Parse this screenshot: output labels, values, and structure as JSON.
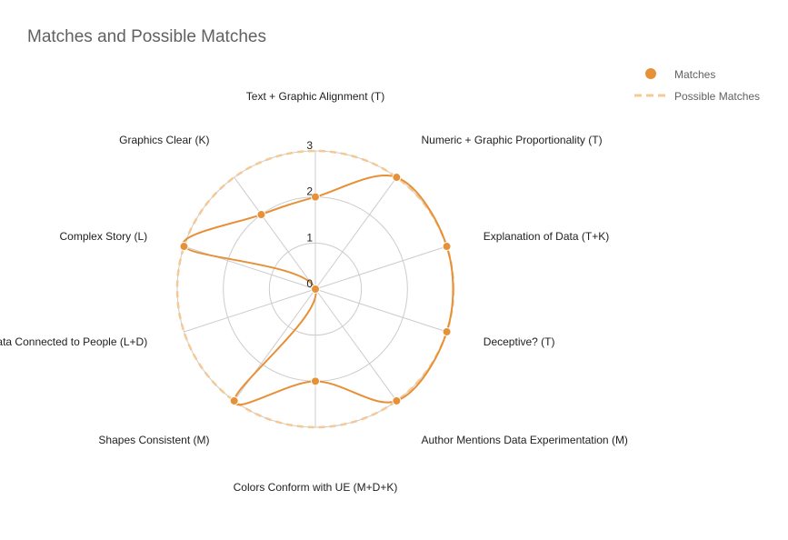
{
  "chart_data": {
    "type": "radar",
    "title": "Matches and Possible Matches",
    "axes": [
      "Text + Graphic Alignment (T)",
      "Numeric + Graphic Proportionality (T)",
      "Explanation of Data (T+K)",
      "Deceptive? (T)",
      "Author Mentions Data Experimentation (M)",
      "Colors Conform with UE (M+D+K)",
      "Shapes Consistent (M)",
      "Data Connected to People (L+D)",
      "Complex Story (L)",
      "Graphics Clear (K)"
    ],
    "rlim": [
      0,
      3
    ],
    "ticks": [
      "0",
      "1",
      "2",
      "3"
    ],
    "grid": true,
    "legend": "top-right",
    "series": [
      {
        "name": "Matches",
        "values": [
          2,
          3,
          3,
          3,
          3,
          2,
          3,
          0,
          3,
          2
        ],
        "color": "#e69138",
        "style": "line-with-points"
      },
      {
        "name": "Possible Matches",
        "values": [
          3,
          3,
          3,
          3,
          3,
          3,
          3,
          3,
          3,
          3
        ],
        "color": "#f6c894",
        "style": "dashed"
      }
    ]
  }
}
